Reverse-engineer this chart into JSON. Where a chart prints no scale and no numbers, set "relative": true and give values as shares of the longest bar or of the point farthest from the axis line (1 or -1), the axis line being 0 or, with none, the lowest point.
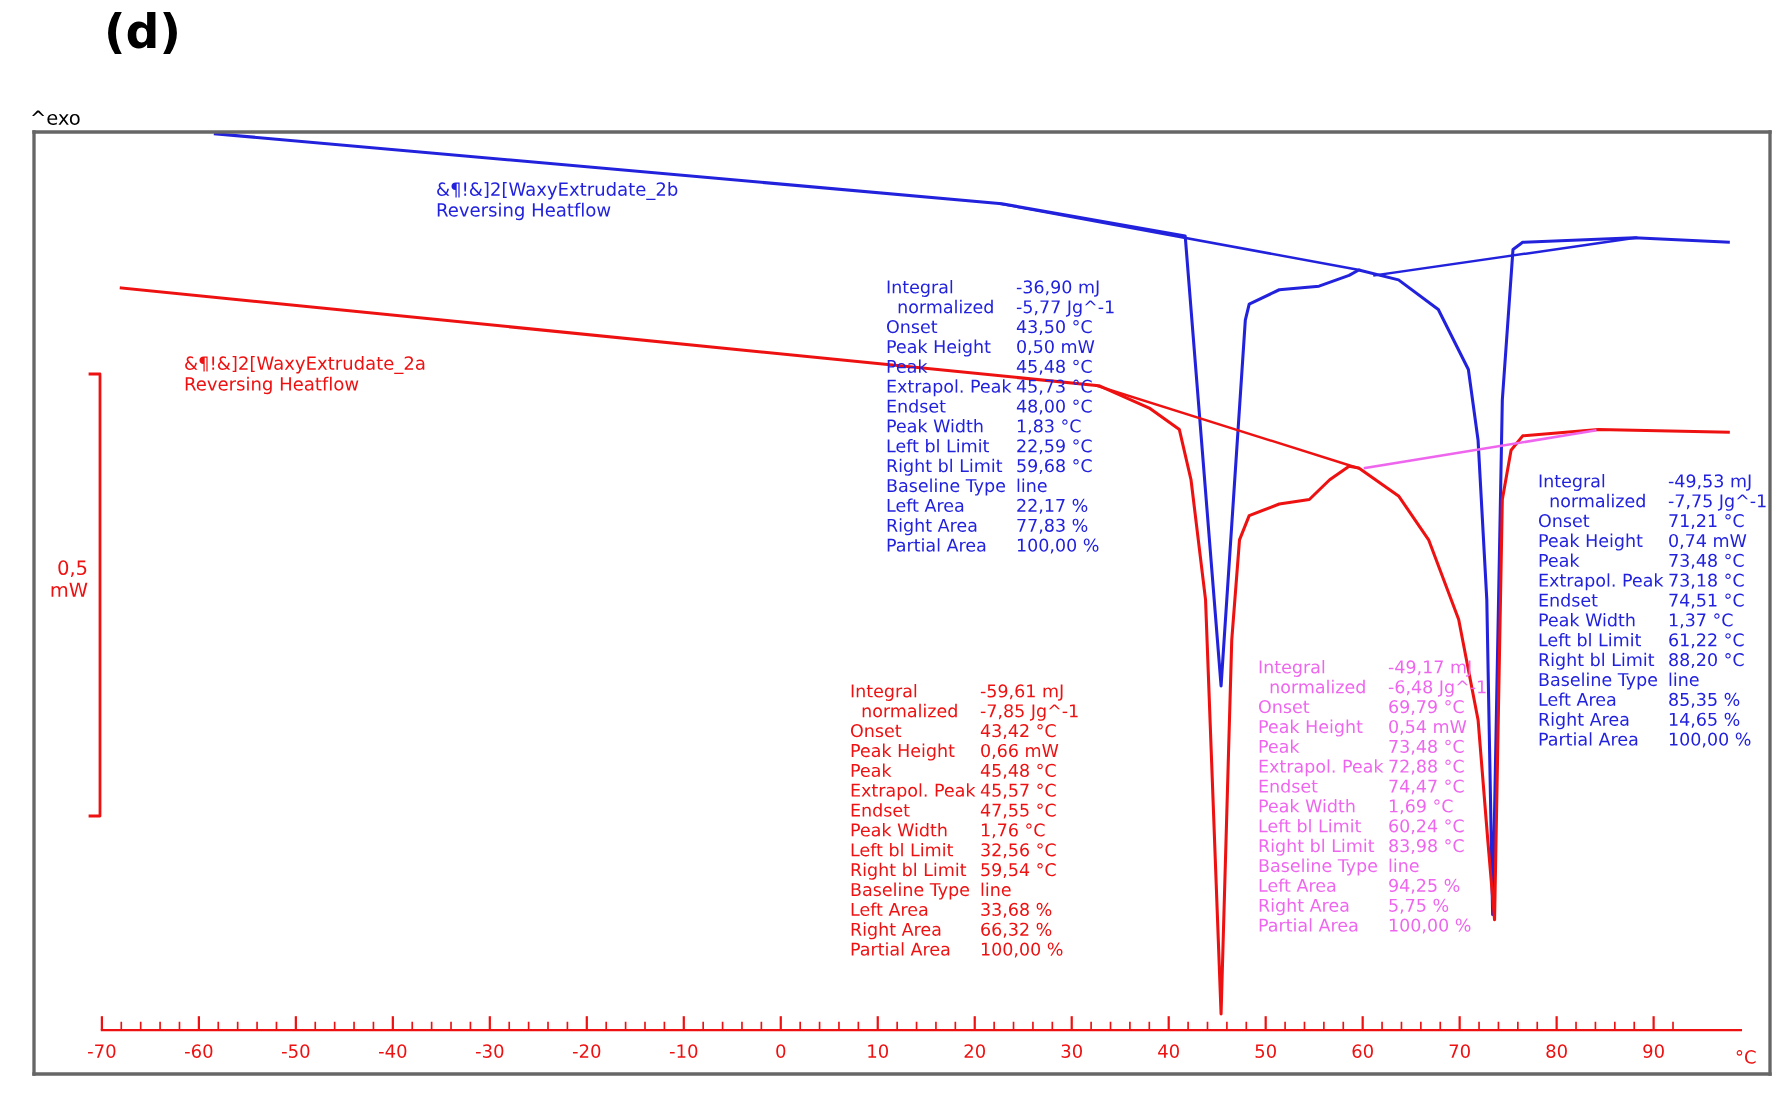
{
  "chart_data": {
    "type": "line",
    "title": "(d)",
    "relative": true,
    "xlabel": "°C",
    "xlim": [
      -77,
      102
    ],
    "xticks": [
      -70,
      -60,
      -50,
      -40,
      -30,
      -20,
      -10,
      0,
      10,
      20,
      30,
      40,
      50,
      60,
      70,
      80,
      90
    ],
    "grid": false,
    "legend": false,
    "line_style": "solid",
    "series": [
      {
        "name": "&¶!&]2[WaxyExtrudate_2b\nReversing Heatflow",
        "color": "#2222dd",
        "x": [
          -58.3,
          22.8,
          41.7,
          45.4,
          47.9,
          48.3,
          51.4,
          55.5,
          58.6,
          59.6,
          63.7,
          67.8,
          70.9,
          71.9,
          72.8,
          73.4,
          74.4,
          75.5,
          76.5,
          88.0,
          97.7
        ],
        "values": [
          1.0,
          0.922,
          0.886,
          0.384,
          0.792,
          0.81,
          0.826,
          0.83,
          0.842,
          0.848,
          0.837,
          0.804,
          0.737,
          0.658,
          0.48,
          0.129,
          0.703,
          0.871,
          0.879,
          0.884,
          0.879
        ]
      },
      {
        "name": "&¶!&]2[WaxyExtrudate_2a\nReversing Heatflow",
        "color": "#ee1111",
        "x": [
          -68.0,
          32.8,
          38.0,
          41.1,
          42.3,
          43.8,
          45.4,
          46.5,
          47.3,
          48.3,
          51.4,
          54.5,
          56.6,
          58.6,
          59.6,
          63.7,
          66.8,
          69.9,
          71.9,
          72.9,
          73.6,
          74.4,
          75.3,
          76.5,
          84.3,
          97.7
        ],
        "values": [
          0.828,
          0.719,
          0.694,
          0.67,
          0.614,
          0.48,
          0.018,
          0.435,
          0.547,
          0.574,
          0.587,
          0.592,
          0.614,
          0.629,
          0.627,
          0.596,
          0.547,
          0.458,
          0.346,
          0.212,
          0.123,
          0.592,
          0.647,
          0.663,
          0.67,
          0.667
        ]
      },
      {
        "color": "#2222dd",
        "x": [
          22.59,
          59.68
        ],
        "values": [
          0.922,
          0.848
        ]
      },
      {
        "color": "#2222dd",
        "x": [
          61.22,
          88.2
        ],
        "values": [
          0.842,
          0.884
        ]
      },
      {
        "color": "#ee1111",
        "x": [
          32.56,
          59.54
        ],
        "values": [
          0.719,
          0.627
        ]
      },
      {
        "color": "#ee66ee",
        "x": [
          60.24,
          83.98
        ],
        "values": [
          0.627,
          0.669
        ]
      }
    ],
    "annotations": [
      "^exo",
      "0,5\nmW",
      "Integral\n  normalized\nOnset\nPeak Height\nPeak\nExtrapol. Peak\nEndset\nPeak Width\nLeft bl Limit\nRight bl Limit\nBaseline Type\nLeft Area\nRight Area\nPartial Area",
      "-36,90 mJ\n-5,77 Jg^-1\n43,50 °C\n0,50 mW\n45,48 °C\n45,73 °C\n48,00 °C\n1,83 °C\n22,59 °C\n59,68 °C\nline\n22,17 %\n77,83 %\n100,00 %",
      "Integral\n  normalized\nOnset\nPeak Height\nPeak\nExtrapol. Peak\nEndset\nPeak Width\nLeft bl Limit\nRight bl Limit\nBaseline Type\nLeft Area\nRight Area\nPartial Area",
      "-59,61 mJ\n-7,85 Jg^-1\n43,42 °C\n0,66 mW\n45,48 °C\n45,57 °C\n47,55 °C\n1,76 °C\n32,56 °C\n59,54 °C\nline\n33,68 %\n66,32 %\n100,00 %",
      "Integral\n  normalized\nOnset\nPeak Height\nPeak\nExtrapol. Peak\nEndset\nPeak Width\nLeft bl Limit\nRight bl Limit\nBaseline Type\nLeft Area\nRight Area\nPartial Area",
      "-49,17 mJ\n-6,48 Jg^-1\n69,79 °C\n0,54 mW\n73,48 °C\n72,88 °C\n74,47 °C\n1,69 °C\n60,24 °C\n83,98 °C\nline\n94,25 %\n5,75 %\n100,00 %",
      "Integral\n  normalized\nOnset\nPeak Height\nPeak\nExtrapol. Peak\nEndset\nPeak Width\nLeft bl Limit\nRight bl Limit\nBaseline Type\nLeft Area\nRight Area\nPartial Area",
      "-49,53 mJ\n-7,75 Jg^-1\n71,21 °C\n0,74 mW\n73,48 °C\n73,18 °C\n74,51 °C\n1,37 °C\n61,22 °C\n88,20 °C\nline\n85,35 %\n14,65 %\n100,00 %"
    ]
  }
}
